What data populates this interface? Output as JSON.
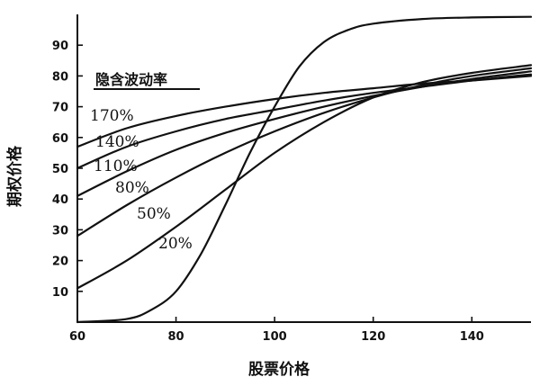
{
  "chart_data": {
    "type": "line",
    "xlabel": "股票价格",
    "ylabel": "期权价格",
    "xlim": [
      60,
      152
    ],
    "ylim": [
      0,
      100
    ],
    "xticks": [
      60,
      80,
      100,
      120,
      140
    ],
    "yticks": [
      10,
      20,
      30,
      40,
      50,
      60,
      70,
      80,
      90
    ],
    "legend_title": "隐含波动率",
    "series": [
      {
        "name": "170%",
        "x": [
          60,
          70,
          80,
          90,
          100,
          110,
          120,
          130,
          140,
          152
        ],
        "y": [
          57,
          63,
          67,
          70,
          72.5,
          74.5,
          76,
          77.5,
          78.5,
          80
        ]
      },
      {
        "name": "140%",
        "x": [
          60,
          70,
          80,
          90,
          100,
          110,
          120,
          130,
          140,
          152
        ],
        "y": [
          50,
          57,
          62,
          66,
          69,
          72,
          74.5,
          76.5,
          78.5,
          80.5
        ]
      },
      {
        "name": "110%",
        "x": [
          60,
          70,
          80,
          90,
          100,
          110,
          120,
          130,
          140,
          152
        ],
        "y": [
          41,
          49,
          56,
          61.5,
          66,
          70,
          73.5,
          76.5,
          79,
          81.5
        ]
      },
      {
        "name": "80%",
        "x": [
          60,
          70,
          80,
          90,
          100,
          110,
          120,
          130,
          140,
          152
        ],
        "y": [
          28,
          38,
          47,
          55,
          62,
          68,
          73,
          77,
          80,
          82.5
        ]
      },
      {
        "name": "50%",
        "x": [
          60,
          70,
          80,
          90,
          100,
          110,
          120,
          130,
          140,
          152
        ],
        "y": [
          11,
          20,
          31,
          43,
          55,
          65,
          73,
          78,
          81,
          83.5
        ]
      },
      {
        "name": "20%",
        "x": [
          60,
          70,
          75,
          80,
          85,
          90,
          95,
          100,
          105,
          110,
          115,
          120,
          130,
          140,
          152
        ],
        "y": [
          0,
          1,
          4,
          10,
          22,
          38,
          55,
          70,
          83,
          91,
          95,
          97,
          98.5,
          99,
          99.2
        ]
      }
    ]
  }
}
